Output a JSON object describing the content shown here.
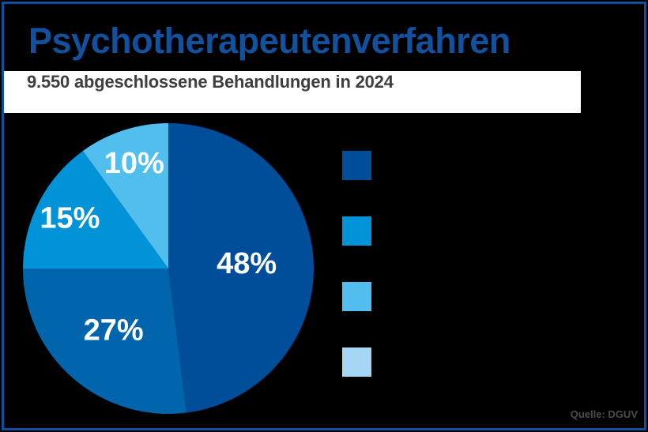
{
  "title": "Psychotherapeutenverfahren",
  "subtitle": "9.550 abgeschlossene Behandlungen in 2024",
  "source": "Quelle: DGUV",
  "colors": {
    "background": "#000000",
    "frame_border": "#0E4F9F",
    "title_blue": "#11519E",
    "subtitle_gray": "#3E3E3E",
    "panel_white": "#FFFFFF",
    "label_white": "#FFFFFF",
    "source_gray": "#4D4D4D"
  },
  "chart_data": {
    "type": "pie",
    "title": "Psychotherapeutenverfahren",
    "subtitle": "9.550 abgeschlossene Behandlungen in 2024",
    "total_treatments": "9.550",
    "year": "2024",
    "start_angle_deg": 0,
    "direction": "clockwise",
    "slices": [
      {
        "label": "48%",
        "value": 48,
        "color": "#004E9A"
      },
      {
        "label": "27%",
        "value": 27,
        "color": "#0065AD"
      },
      {
        "label": "15%",
        "value": 15,
        "color": "#0093D8"
      },
      {
        "label": "10%",
        "value": 10,
        "color": "#52BEEE"
      }
    ],
    "legend_position": "right",
    "legend_labels_visible": false,
    "legend_swatch_colors": [
      "#004E9A",
      "#0093D8",
      "#52BEEE",
      "#A5D7F4"
    ]
  }
}
